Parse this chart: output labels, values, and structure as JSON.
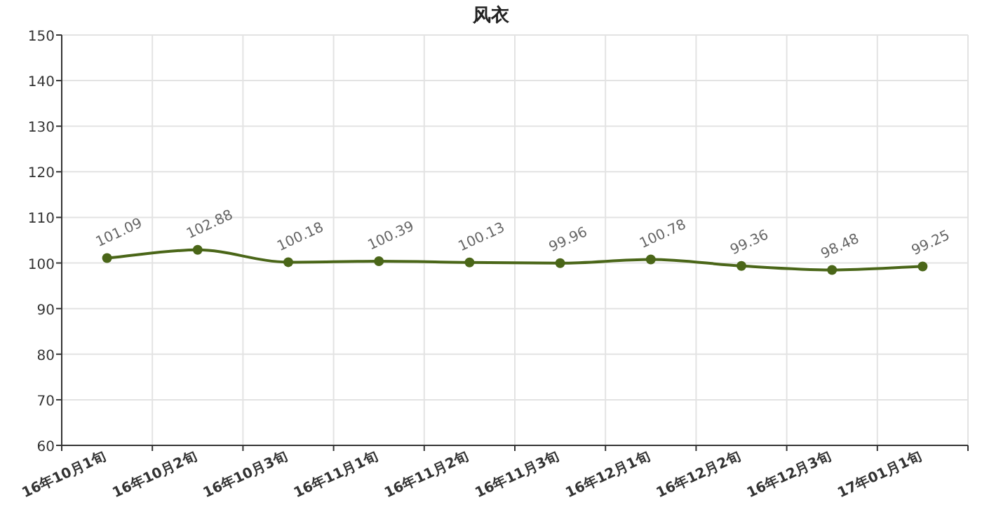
{
  "chart_data": {
    "type": "line",
    "title": "风衣",
    "categories": [
      "16年10月1旬",
      "16年10月2旬",
      "16年10月3旬",
      "16年11月1旬",
      "16年11月2旬",
      "16年11月3旬",
      "16年12月1旬",
      "16年12月2旬",
      "16年12月3旬",
      "17年01月1旬"
    ],
    "series": [
      {
        "color": "#4a6618",
        "values": [
          101.09,
          102.88,
          100.18,
          100.39,
          100.13,
          99.96,
          100.78,
          99.36,
          98.48,
          99.25
        ]
      }
    ],
    "ylim": [
      60,
      150
    ],
    "yticks": [
      60,
      70,
      80,
      90,
      100,
      110,
      120,
      130,
      140,
      150
    ],
    "grid": true,
    "marker": "circle",
    "line_style": "solid",
    "data_labels": true
  }
}
